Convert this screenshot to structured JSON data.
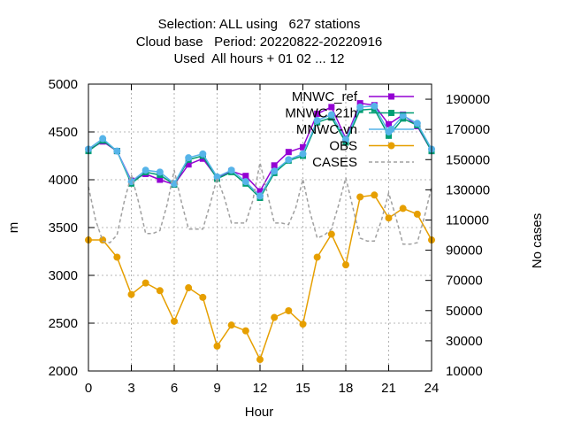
{
  "chart_data": {
    "type": "line",
    "title_lines": [
      "Selection: ALL using   627 stations",
      "Cloud base   Period: 20220822-20220916",
      "Used  All hours + 01 02 ... 12"
    ],
    "xlabel": "Hour",
    "ylabel": "m",
    "y2label": "No cases",
    "xlim": [
      0,
      24
    ],
    "ylim": [
      2000,
      5000
    ],
    "y2lim": [
      10000,
      200000
    ],
    "xticks": [
      0,
      3,
      6,
      9,
      12,
      15,
      18,
      21,
      24
    ],
    "yticks": [
      2000,
      2500,
      3000,
      3500,
      4000,
      4500,
      5000
    ],
    "y2ticks": [
      10000,
      30000,
      50000,
      70000,
      90000,
      110000,
      130000,
      150000,
      170000,
      190000
    ],
    "grid": true,
    "legend_position": "top-right",
    "series": [
      {
        "name": "MNWC_ref",
        "color": "#9400d3",
        "marker": "square",
        "axis": "y",
        "x": [
          0,
          1,
          2,
          3,
          4,
          5,
          6,
          7,
          8,
          9,
          10,
          11,
          12,
          13,
          14,
          15,
          16,
          17,
          18,
          19,
          20,
          21,
          22,
          23,
          24
        ],
        "values": [
          4310,
          4400,
          4300,
          3990,
          4060,
          4000,
          3950,
          4160,
          4220,
          4020,
          4090,
          4040,
          3880,
          4150,
          4290,
          4340,
          4690,
          4760,
          4430,
          4800,
          4780,
          4580,
          4680,
          4560,
          4300
        ]
      },
      {
        "name": "MNWC_21h",
        "color": "#009e73",
        "marker": "square",
        "axis": "y",
        "x": [
          0,
          1,
          2,
          3,
          4,
          5,
          6,
          7,
          8,
          9,
          10,
          11,
          12,
          13,
          14,
          15,
          16,
          17,
          18,
          19,
          20,
          21,
          22,
          23,
          24
        ],
        "values": [
          4300,
          4410,
          4300,
          3960,
          4080,
          4050,
          3950,
          4210,
          4250,
          4010,
          4080,
          3960,
          3810,
          4070,
          4200,
          4250,
          4600,
          4650,
          4390,
          4730,
          4740,
          4460,
          4640,
          4570,
          4300
        ]
      },
      {
        "name": "MNWC-vn",
        "color": "#56b4e9",
        "marker": "circle",
        "axis": "y",
        "x": [
          0,
          1,
          2,
          3,
          4,
          5,
          6,
          7,
          8,
          9,
          10,
          11,
          12,
          13,
          14,
          15,
          16,
          17,
          18,
          19,
          20,
          21,
          22,
          23,
          24
        ],
        "values": [
          4320,
          4430,
          4300,
          3980,
          4100,
          4080,
          3960,
          4230,
          4270,
          4030,
          4100,
          3980,
          3830,
          4090,
          4210,
          4270,
          4620,
          4680,
          4420,
          4760,
          4770,
          4500,
          4670,
          4590,
          4320
        ]
      },
      {
        "name": "OBS",
        "color": "#e69f00",
        "marker": "circle",
        "axis": "y",
        "x": [
          0,
          1,
          2,
          3,
          4,
          5,
          6,
          7,
          8,
          9,
          10,
          11,
          12,
          13,
          14,
          15,
          16,
          17,
          18,
          19,
          20,
          21,
          22,
          23,
          24
        ],
        "values": [
          3370,
          3370,
          3190,
          2800,
          2920,
          2840,
          2520,
          2870,
          2770,
          2260,
          2480,
          2420,
          2120,
          2560,
          2630,
          2490,
          3190,
          3430,
          3110,
          3820,
          3840,
          3600,
          3700,
          3640,
          3370
        ]
      },
      {
        "name": "CASES",
        "color": "#a0a0a0",
        "marker": "none",
        "dashed": true,
        "axis": "y2",
        "x": [
          0,
          0.5,
          1,
          1.5,
          2,
          2.5,
          3,
          3.5,
          4,
          4.5,
          5,
          5.5,
          6,
          6.5,
          7,
          7.5,
          8,
          8.5,
          9,
          9.5,
          10,
          10.5,
          11,
          11.5,
          12,
          12.5,
          13,
          13.5,
          14,
          14.5,
          15,
          15.5,
          16,
          16.5,
          17,
          17.5,
          18,
          18.5,
          19,
          19.5,
          20,
          20.5,
          21,
          21.5,
          22,
          22.5,
          23,
          23.5,
          24
        ],
        "values": [
          132000,
          110000,
          96000,
          95000,
          100000,
          122000,
          140000,
          122000,
          101000,
          101000,
          103000,
          120000,
          143000,
          122000,
          104000,
          104000,
          104000,
          120000,
          138000,
          125000,
          108000,
          108000,
          108000,
          123000,
          148000,
          128000,
          108000,
          108000,
          107000,
          118000,
          137000,
          115000,
          98000,
          100000,
          104000,
          120000,
          138000,
          118000,
          98000,
          96000,
          96000,
          110000,
          128000,
          112000,
          94000,
          94000,
          95000,
          112000,
          132000
        ]
      }
    ]
  }
}
